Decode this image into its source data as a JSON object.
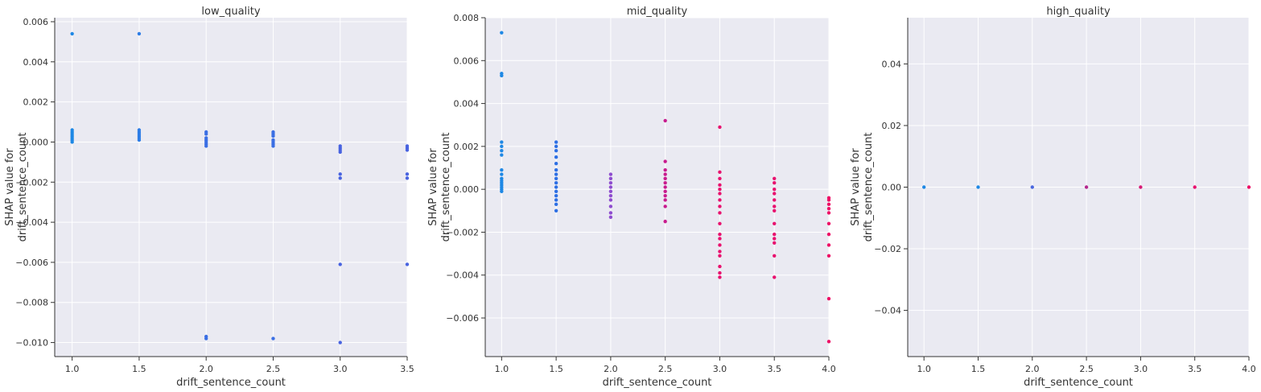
{
  "chart_data": [
    {
      "type": "scatter",
      "title": "low_quality",
      "xlabel": "drift_sentence_count",
      "ylabel": [
        "SHAP value for",
        "drift_sentence_count"
      ],
      "xlim": [
        0.87,
        3.5
      ],
      "ylim": [
        -0.0107,
        0.0062
      ],
      "xticks": [
        1.0,
        1.5,
        2.0,
        2.5,
        3.0,
        3.5
      ],
      "xtick_labels": [
        "1.0",
        "1.5",
        "2.0",
        "2.5",
        "3.0",
        "3.5"
      ],
      "yticks": [
        0.006,
        0.004,
        0.002,
        0.0,
        -0.002,
        -0.004,
        -0.006,
        -0.008,
        -0.01
      ],
      "ytick_labels": [
        "0.006",
        "0.004",
        "0.002",
        "0.000",
        "−0.002",
        "−0.004",
        "−0.006",
        "−0.008",
        "−0.010"
      ],
      "grid": true,
      "points": [
        {
          "x": 1.0,
          "y": 0.0054,
          "color": "#1e88e5"
        },
        {
          "x": 1.0,
          "y": 0.0006,
          "color": "#1e88e5"
        },
        {
          "x": 1.0,
          "y": 0.0005,
          "color": "#1e88e5"
        },
        {
          "x": 1.0,
          "y": 0.0004,
          "color": "#1e88e5"
        },
        {
          "x": 1.0,
          "y": 0.0003,
          "color": "#1e88e5"
        },
        {
          "x": 1.0,
          "y": 0.0002,
          "color": "#1e88e5"
        },
        {
          "x": 1.0,
          "y": 0.0001,
          "color": "#1e88e5"
        },
        {
          "x": 1.0,
          "y": 0.0,
          "color": "#1e88e5"
        },
        {
          "x": 1.5,
          "y": 0.0054,
          "color": "#2d7de6"
        },
        {
          "x": 1.5,
          "y": 0.0006,
          "color": "#2d7de6"
        },
        {
          "x": 1.5,
          "y": 0.0005,
          "color": "#2d7de6"
        },
        {
          "x": 1.5,
          "y": 0.0004,
          "color": "#2d7de6"
        },
        {
          "x": 1.5,
          "y": 0.0003,
          "color": "#2d7de6"
        },
        {
          "x": 1.5,
          "y": 0.0002,
          "color": "#2d7de6"
        },
        {
          "x": 1.5,
          "y": 0.0001,
          "color": "#2d7de6"
        },
        {
          "x": 2.0,
          "y": 0.0005,
          "color": "#3b6fe4"
        },
        {
          "x": 2.0,
          "y": 0.0004,
          "color": "#3b6fe4"
        },
        {
          "x": 2.0,
          "y": 0.0002,
          "color": "#3b6fe4"
        },
        {
          "x": 2.0,
          "y": 0.0001,
          "color": "#3b6fe4"
        },
        {
          "x": 2.0,
          "y": 0.0,
          "color": "#3b6fe4"
        },
        {
          "x": 2.0,
          "y": -0.0001,
          "color": "#3b6fe4"
        },
        {
          "x": 2.0,
          "y": -0.0002,
          "color": "#3b6fe4"
        },
        {
          "x": 2.0,
          "y": -0.0097,
          "color": "#3b6fe4"
        },
        {
          "x": 2.0,
          "y": -0.0098,
          "color": "#3b6fe4"
        },
        {
          "x": 2.5,
          "y": 0.0005,
          "color": "#3b6fe4"
        },
        {
          "x": 2.5,
          "y": 0.0004,
          "color": "#3b6fe4"
        },
        {
          "x": 2.5,
          "y": 0.0003,
          "color": "#3b6fe4"
        },
        {
          "x": 2.5,
          "y": 0.0001,
          "color": "#3b6fe4"
        },
        {
          "x": 2.5,
          "y": 0.0,
          "color": "#3b6fe4"
        },
        {
          "x": 2.5,
          "y": -0.0001,
          "color": "#3b6fe4"
        },
        {
          "x": 2.5,
          "y": -0.0002,
          "color": "#3b6fe4"
        },
        {
          "x": 2.5,
          "y": -0.0098,
          "color": "#3b6fe4"
        },
        {
          "x": 3.0,
          "y": -0.0002,
          "color": "#4863e0"
        },
        {
          "x": 3.0,
          "y": -0.0003,
          "color": "#4863e0"
        },
        {
          "x": 3.0,
          "y": -0.0004,
          "color": "#4863e0"
        },
        {
          "x": 3.0,
          "y": -0.0005,
          "color": "#4863e0"
        },
        {
          "x": 3.0,
          "y": -0.0016,
          "color": "#4863e0"
        },
        {
          "x": 3.0,
          "y": -0.0018,
          "color": "#4863e0"
        },
        {
          "x": 3.0,
          "y": -0.0061,
          "color": "#4863e0"
        },
        {
          "x": 3.0,
          "y": -0.01,
          "color": "#4863e0"
        },
        {
          "x": 3.5,
          "y": -0.0002,
          "color": "#4863e0"
        },
        {
          "x": 3.5,
          "y": -0.0003,
          "color": "#4863e0"
        },
        {
          "x": 3.5,
          "y": -0.0004,
          "color": "#4863e0"
        },
        {
          "x": 3.5,
          "y": -0.0016,
          "color": "#4863e0"
        },
        {
          "x": 3.5,
          "y": -0.0018,
          "color": "#4863e0"
        },
        {
          "x": 3.5,
          "y": -0.0061,
          "color": "#4863e0"
        }
      ]
    },
    {
      "type": "scatter",
      "title": "mid_quality",
      "xlabel": "drift_sentence_count",
      "ylabel": [
        "SHAP value for",
        "drift_sentence_count"
      ],
      "xlim": [
        0.85,
        4.0
      ],
      "ylim": [
        -0.0078,
        0.008
      ],
      "xticks": [
        1.0,
        1.5,
        2.0,
        2.5,
        3.0,
        3.5,
        4.0
      ],
      "xtick_labels": [
        "1.0",
        "1.5",
        "2.0",
        "2.5",
        "3.0",
        "3.5",
        "4.0"
      ],
      "yticks": [
        0.008,
        0.006,
        0.004,
        0.002,
        0.0,
        -0.002,
        -0.004,
        -0.006
      ],
      "ytick_labels": [
        "0.008",
        "0.006",
        "0.004",
        "0.002",
        "0.000",
        "−0.002",
        "−0.004",
        "−0.006"
      ],
      "grid": true,
      "points": [
        {
          "x": 1.0,
          "y": 0.0073,
          "color": "#1e88e5"
        },
        {
          "x": 1.0,
          "y": 0.0054,
          "color": "#1e88e5"
        },
        {
          "x": 1.0,
          "y": 0.0053,
          "color": "#1e88e5"
        },
        {
          "x": 1.0,
          "y": 0.0022,
          "color": "#1e88e5"
        },
        {
          "x": 1.0,
          "y": 0.002,
          "color": "#1e88e5"
        },
        {
          "x": 1.0,
          "y": 0.0018,
          "color": "#1e88e5"
        },
        {
          "x": 1.0,
          "y": 0.0016,
          "color": "#1e88e5"
        },
        {
          "x": 1.0,
          "y": 0.0009,
          "color": "#1e88e5"
        },
        {
          "x": 1.0,
          "y": 0.0007,
          "color": "#1e88e5"
        },
        {
          "x": 1.0,
          "y": 0.0005,
          "color": "#1e88e5"
        },
        {
          "x": 1.0,
          "y": 0.0004,
          "color": "#1e88e5"
        },
        {
          "x": 1.0,
          "y": 0.0003,
          "color": "#1e88e5"
        },
        {
          "x": 1.0,
          "y": 0.0002,
          "color": "#1e88e5"
        },
        {
          "x": 1.0,
          "y": 0.0001,
          "color": "#1e88e5"
        },
        {
          "x": 1.0,
          "y": 0.0,
          "color": "#1e88e5"
        },
        {
          "x": 1.0,
          "y": -0.0001,
          "color": "#1e88e5"
        },
        {
          "x": 1.5,
          "y": 0.0022,
          "color": "#2d6fe4"
        },
        {
          "x": 1.5,
          "y": 0.002,
          "color": "#2d6fe4"
        },
        {
          "x": 1.5,
          "y": 0.0018,
          "color": "#2d6fe4"
        },
        {
          "x": 1.5,
          "y": 0.0015,
          "color": "#2d6fe4"
        },
        {
          "x": 1.5,
          "y": 0.0012,
          "color": "#2d6fe4"
        },
        {
          "x": 1.5,
          "y": 0.0009,
          "color": "#2d6fe4"
        },
        {
          "x": 1.5,
          "y": 0.0007,
          "color": "#2d6fe4"
        },
        {
          "x": 1.5,
          "y": 0.0005,
          "color": "#2d6fe4"
        },
        {
          "x": 1.5,
          "y": 0.0003,
          "color": "#2d6fe4"
        },
        {
          "x": 1.5,
          "y": 0.0001,
          "color": "#2d6fe4"
        },
        {
          "x": 1.5,
          "y": -0.0001,
          "color": "#2d6fe4"
        },
        {
          "x": 1.5,
          "y": -0.0003,
          "color": "#2d6fe4"
        },
        {
          "x": 1.5,
          "y": -0.0005,
          "color": "#2d6fe4"
        },
        {
          "x": 1.5,
          "y": -0.0007,
          "color": "#2d6fe4"
        },
        {
          "x": 1.5,
          "y": -0.001,
          "color": "#2d6fe4"
        },
        {
          "x": 2.0,
          "y": 0.0007,
          "color": "#8e4ccf"
        },
        {
          "x": 2.0,
          "y": 0.0005,
          "color": "#8e4ccf"
        },
        {
          "x": 2.0,
          "y": 0.0003,
          "color": "#8e4ccf"
        },
        {
          "x": 2.0,
          "y": 0.0001,
          "color": "#8e4ccf"
        },
        {
          "x": 2.0,
          "y": -0.0001,
          "color": "#8e4ccf"
        },
        {
          "x": 2.0,
          "y": -0.0003,
          "color": "#8e4ccf"
        },
        {
          "x": 2.0,
          "y": -0.0005,
          "color": "#8e4ccf"
        },
        {
          "x": 2.0,
          "y": -0.0008,
          "color": "#8e4ccf"
        },
        {
          "x": 2.0,
          "y": -0.0011,
          "color": "#8e4ccf"
        },
        {
          "x": 2.0,
          "y": -0.0013,
          "color": "#8e4ccf"
        },
        {
          "x": 2.5,
          "y": 0.0032,
          "color": "#c81b8e"
        },
        {
          "x": 2.5,
          "y": 0.0013,
          "color": "#c81b8e"
        },
        {
          "x": 2.5,
          "y": 0.0009,
          "color": "#c81b8e"
        },
        {
          "x": 2.5,
          "y": 0.0007,
          "color": "#c81b8e"
        },
        {
          "x": 2.5,
          "y": 0.0005,
          "color": "#c81b8e"
        },
        {
          "x": 2.5,
          "y": 0.0003,
          "color": "#c81b8e"
        },
        {
          "x": 2.5,
          "y": 0.0001,
          "color": "#c81b8e"
        },
        {
          "x": 2.5,
          "y": -0.0001,
          "color": "#c81b8e"
        },
        {
          "x": 2.5,
          "y": -0.0003,
          "color": "#c81b8e"
        },
        {
          "x": 2.5,
          "y": -0.0005,
          "color": "#c81b8e"
        },
        {
          "x": 2.5,
          "y": -0.0008,
          "color": "#c81b8e"
        },
        {
          "x": 2.5,
          "y": -0.0015,
          "color": "#c81b8e"
        },
        {
          "x": 3.0,
          "y": 0.0029,
          "color": "#e8126f"
        },
        {
          "x": 3.0,
          "y": 0.0008,
          "color": "#e8126f"
        },
        {
          "x": 3.0,
          "y": 0.0005,
          "color": "#e8126f"
        },
        {
          "x": 3.0,
          "y": 0.0002,
          "color": "#e8126f"
        },
        {
          "x": 3.0,
          "y": 0.0,
          "color": "#e8126f"
        },
        {
          "x": 3.0,
          "y": -0.0002,
          "color": "#e8126f"
        },
        {
          "x": 3.0,
          "y": -0.0005,
          "color": "#e8126f"
        },
        {
          "x": 3.0,
          "y": -0.0008,
          "color": "#e8126f"
        },
        {
          "x": 3.0,
          "y": -0.0011,
          "color": "#e8126f"
        },
        {
          "x": 3.0,
          "y": -0.0016,
          "color": "#e8126f"
        },
        {
          "x": 3.0,
          "y": -0.0021,
          "color": "#e8126f"
        },
        {
          "x": 3.0,
          "y": -0.0023,
          "color": "#e8126f"
        },
        {
          "x": 3.0,
          "y": -0.0026,
          "color": "#e8126f"
        },
        {
          "x": 3.0,
          "y": -0.0029,
          "color": "#e8126f"
        },
        {
          "x": 3.0,
          "y": -0.0031,
          "color": "#e8126f"
        },
        {
          "x": 3.0,
          "y": -0.0036,
          "color": "#e8126f"
        },
        {
          "x": 3.0,
          "y": -0.0039,
          "color": "#e8126f"
        },
        {
          "x": 3.0,
          "y": -0.0041,
          "color": "#e8126f"
        },
        {
          "x": 3.5,
          "y": 0.0005,
          "color": "#e8126f"
        },
        {
          "x": 3.5,
          "y": 0.0003,
          "color": "#e8126f"
        },
        {
          "x": 3.5,
          "y": 0.0,
          "color": "#e8126f"
        },
        {
          "x": 3.5,
          "y": -0.0002,
          "color": "#e8126f"
        },
        {
          "x": 3.5,
          "y": -0.0005,
          "color": "#e8126f"
        },
        {
          "x": 3.5,
          "y": -0.0008,
          "color": "#e8126f"
        },
        {
          "x": 3.5,
          "y": -0.001,
          "color": "#e8126f"
        },
        {
          "x": 3.5,
          "y": -0.0016,
          "color": "#e8126f"
        },
        {
          "x": 3.5,
          "y": -0.0021,
          "color": "#e8126f"
        },
        {
          "x": 3.5,
          "y": -0.0023,
          "color": "#e8126f"
        },
        {
          "x": 3.5,
          "y": -0.0025,
          "color": "#e8126f"
        },
        {
          "x": 3.5,
          "y": -0.0031,
          "color": "#e8126f"
        },
        {
          "x": 3.5,
          "y": -0.0041,
          "color": "#e8126f"
        },
        {
          "x": 4.0,
          "y": -0.0004,
          "color": "#ee0f66"
        },
        {
          "x": 4.0,
          "y": -0.0005,
          "color": "#ee0f66"
        },
        {
          "x": 4.0,
          "y": -0.0007,
          "color": "#ee0f66"
        },
        {
          "x": 4.0,
          "y": -0.0009,
          "color": "#ee0f66"
        },
        {
          "x": 4.0,
          "y": -0.0011,
          "color": "#ee0f66"
        },
        {
          "x": 4.0,
          "y": -0.0016,
          "color": "#ee0f66"
        },
        {
          "x": 4.0,
          "y": -0.0021,
          "color": "#ee0f66"
        },
        {
          "x": 4.0,
          "y": -0.0026,
          "color": "#ee0f66"
        },
        {
          "x": 4.0,
          "y": -0.0031,
          "color": "#ee0f66"
        },
        {
          "x": 4.0,
          "y": -0.0051,
          "color": "#ee0f66"
        },
        {
          "x": 4.0,
          "y": -0.0071,
          "color": "#ee0f66"
        }
      ]
    },
    {
      "type": "scatter",
      "title": "high_quality",
      "xlabel": "drift_sentence_count",
      "ylabel": [
        "SHAP value for",
        "drift_sentence_count"
      ],
      "xlim": [
        0.85,
        4.0
      ],
      "ylim": [
        -0.055,
        0.055
      ],
      "xticks": [
        1.0,
        1.5,
        2.0,
        2.5,
        3.0,
        3.5,
        4.0
      ],
      "xtick_labels": [
        "1.0",
        "1.5",
        "2.0",
        "2.5",
        "3.0",
        "3.5",
        "4.0"
      ],
      "yticks": [
        0.04,
        0.02,
        0.0,
        -0.02,
        -0.04
      ],
      "ytick_labels": [
        "0.04",
        "0.02",
        "0.00",
        "−0.02",
        "−0.04"
      ],
      "grid": true,
      "points": [
        {
          "x": 1.0,
          "y": 0.0,
          "color": "#1e88e5"
        },
        {
          "x": 1.5,
          "y": 0.0,
          "color": "#1e88e5"
        },
        {
          "x": 2.0,
          "y": 0.0,
          "color": "#4a67df"
        },
        {
          "x": 2.5,
          "y": 0.0,
          "color": "#b5288e"
        },
        {
          "x": 3.0,
          "y": 0.0,
          "color": "#d81b76"
        },
        {
          "x": 3.5,
          "y": 0.0,
          "color": "#e8126f"
        },
        {
          "x": 4.0,
          "y": 0.0,
          "color": "#ee0f66"
        }
      ]
    }
  ]
}
